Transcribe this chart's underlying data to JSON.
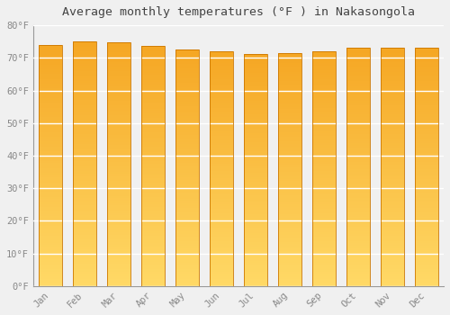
{
  "months": [
    "Jan",
    "Feb",
    "Mar",
    "Apr",
    "May",
    "Jun",
    "Jul",
    "Aug",
    "Sep",
    "Oct",
    "Nov",
    "Dec"
  ],
  "values": [
    73.9,
    75.0,
    74.8,
    73.6,
    72.5,
    72.0,
    71.1,
    71.4,
    72.0,
    73.0,
    73.0,
    73.0
  ],
  "title": "Average monthly temperatures (°F ) in Nakasongola",
  "ylim": [
    0,
    80
  ],
  "ytick_step": 10,
  "background_color": "#f0f0f0",
  "plot_bg_color": "#f0f0f0",
  "grid_color": "#ffffff",
  "bar_edge_color": "#cc7700",
  "bar_grad_top": "#F5A623",
  "bar_grad_bottom": "#FFD966",
  "title_fontsize": 9.5,
  "tick_fontsize": 7.5,
  "tick_color": "#888888",
  "bar_width": 0.68
}
